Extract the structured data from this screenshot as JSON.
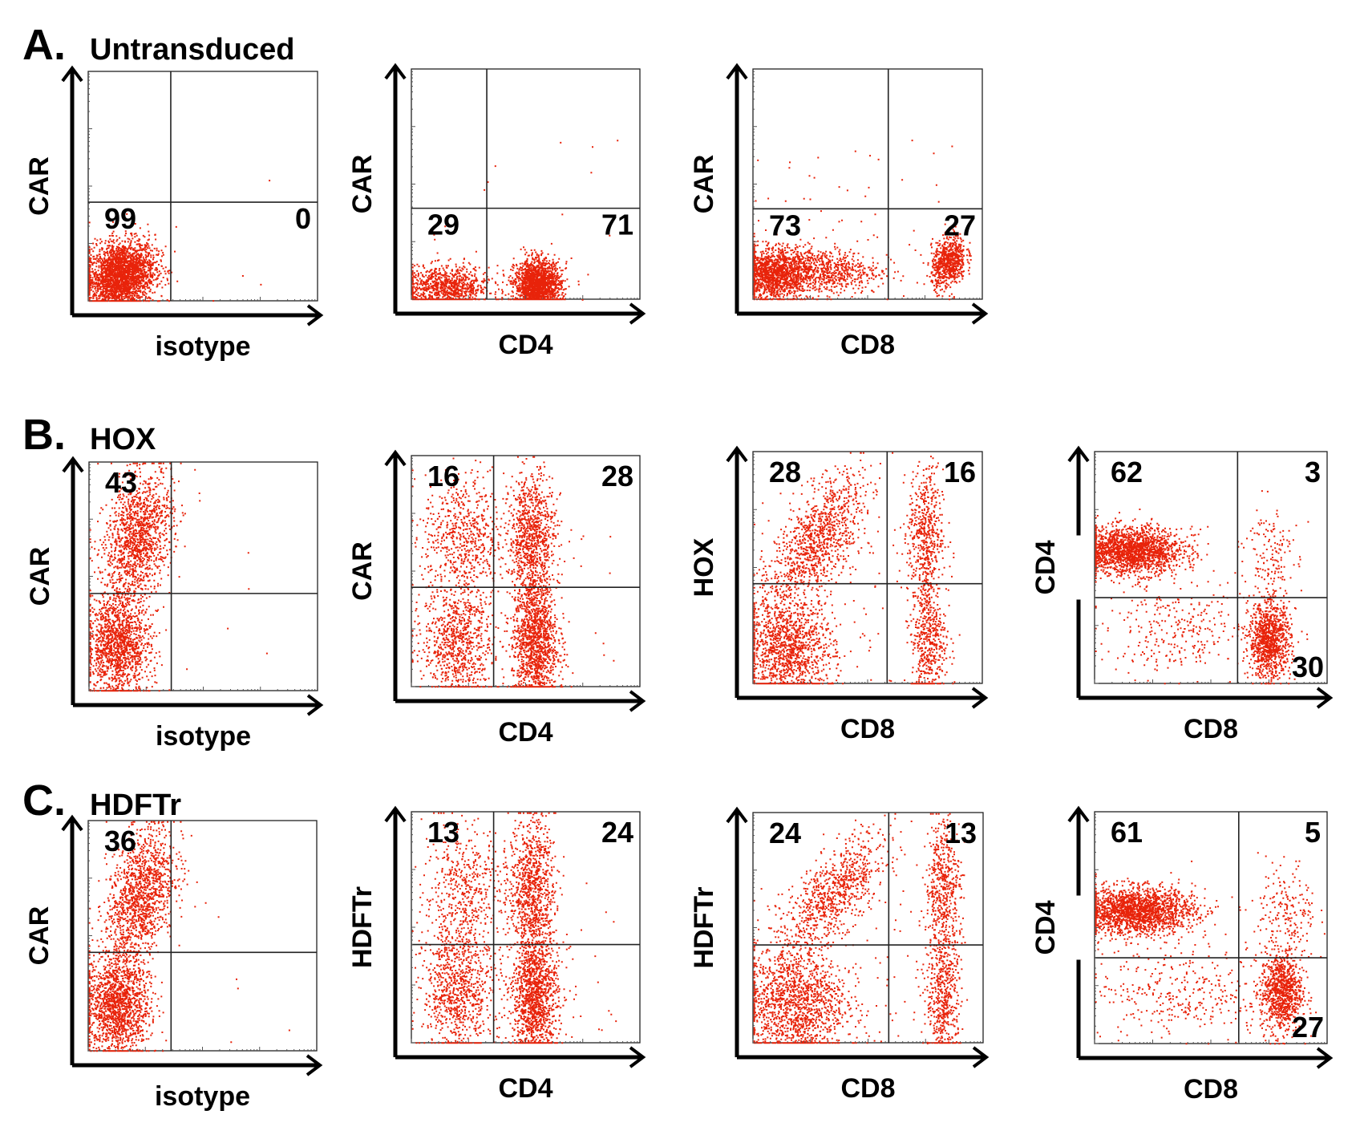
{
  "figure": {
    "sections": [
      {
        "letter": "A.",
        "title": "Untransduced"
      },
      {
        "letter": "B.",
        "title": "HOX"
      },
      {
        "letter": "C.",
        "title": "HDFTr"
      }
    ]
  },
  "chart_data": [
    {
      "type": "scatter",
      "panel": "A1",
      "section": "A",
      "xlabel": "isotype",
      "ylabel": "CAR",
      "xlim": [
        0,
        4
      ],
      "ylim": [
        0,
        4
      ],
      "gate": [
        1.44,
        1.72
      ],
      "quadrants": {
        "UL": null,
        "UR": null,
        "LL": "99",
        "LR": "0"
      },
      "clusters": [
        {
          "cx": 0.55,
          "cy": 0.45,
          "sx": 0.3,
          "sy": 0.3,
          "n": 2600,
          "corr": 0.2
        }
      ],
      "sparse": 10
    },
    {
      "type": "scatter",
      "panel": "A2",
      "section": "A",
      "xlabel": "CD4",
      "ylabel": "CAR",
      "xlim": [
        0,
        4
      ],
      "ylim": [
        0,
        4
      ],
      "gate": [
        1.32,
        1.58
      ],
      "quadrants": {
        "UL": null,
        "UR": null,
        "LL": "29",
        "LR": "71"
      },
      "clusters": [
        {
          "cx": 0.6,
          "cy": 0.22,
          "sx": 0.38,
          "sy": 0.18,
          "n": 900,
          "corr": 0
        },
        {
          "cx": 2.2,
          "cy": 0.25,
          "sx": 0.2,
          "sy": 0.22,
          "n": 1800,
          "corr": 0
        }
      ],
      "sparse": 20
    },
    {
      "type": "scatter",
      "panel": "A3",
      "section": "A",
      "xlabel": "CD8",
      "ylabel": "CAR",
      "xlim": [
        0,
        4
      ],
      "ylim": [
        0,
        4
      ],
      "gate": [
        2.36,
        1.57
      ],
      "quadrants": {
        "UL": null,
        "UR": null,
        "LL": "73",
        "LR": "27"
      },
      "clusters": [
        {
          "cx": 0.3,
          "cy": 0.45,
          "sx": 0.35,
          "sy": 0.22,
          "n": 1500,
          "corr": 0
        },
        {
          "cx": 1.2,
          "cy": 0.5,
          "sx": 0.5,
          "sy": 0.2,
          "n": 700,
          "corr": 0
        },
        {
          "cx": 3.4,
          "cy": 0.65,
          "sx": 0.15,
          "sy": 0.22,
          "n": 700,
          "corr": 0.3
        }
      ],
      "sparse": 60
    },
    {
      "type": "scatter",
      "panel": "B1",
      "section": "B",
      "xlabel": "isotype",
      "ylabel": "CAR",
      "xlim": [
        0,
        4
      ],
      "ylim": [
        0,
        4
      ],
      "gate": [
        1.44,
        1.7
      ],
      "quadrants": {
        "UL": "43",
        "UR": null,
        "LL": null,
        "LR": null
      },
      "clusters": [
        {
          "cx": 0.5,
          "cy": 0.8,
          "sx": 0.28,
          "sy": 0.45,
          "n": 1400,
          "corr": 0
        },
        {
          "cx": 0.85,
          "cy": 2.7,
          "sx": 0.3,
          "sy": 0.55,
          "n": 1300,
          "corr": 0.3
        }
      ],
      "sparse": 10
    },
    {
      "type": "scatter",
      "panel": "B2",
      "section": "B",
      "xlabel": "CD4",
      "ylabel": "CAR",
      "xlim": [
        0,
        4
      ],
      "ylim": [
        0,
        4
      ],
      "gate": [
        1.44,
        1.72
      ],
      "quadrants": {
        "UL": "16",
        "UR": "28",
        "LL": null,
        "LR": null
      },
      "clusters": [
        {
          "cx": 0.8,
          "cy": 0.8,
          "sx": 0.3,
          "sy": 0.5,
          "n": 800,
          "corr": 0
        },
        {
          "cx": 0.9,
          "cy": 2.6,
          "sx": 0.35,
          "sy": 0.55,
          "n": 600,
          "corr": 0
        },
        {
          "cx": 2.15,
          "cy": 0.8,
          "sx": 0.2,
          "sy": 0.55,
          "n": 1300,
          "corr": 0
        },
        {
          "cx": 2.1,
          "cy": 2.6,
          "sx": 0.2,
          "sy": 0.55,
          "n": 900,
          "corr": 0
        }
      ],
      "sparse": 60
    },
    {
      "type": "scatter",
      "panel": "B3",
      "section": "B",
      "xlabel": "CD8",
      "ylabel": "HOX",
      "xlim": [
        0,
        4
      ],
      "ylim": [
        0,
        4
      ],
      "gate": [
        2.34,
        1.72
      ],
      "quadrants": {
        "UL": "28",
        "UR": "16",
        "LL": null,
        "LR": null
      },
      "clusters": [
        {
          "cx": 0.6,
          "cy": 0.6,
          "sx": 0.4,
          "sy": 0.45,
          "n": 1300,
          "corr": 0
        },
        {
          "cx": 1.1,
          "cy": 2.5,
          "sx": 0.4,
          "sy": 0.55,
          "n": 1000,
          "corr": 0.6
        },
        {
          "cx": 3.0,
          "cy": 2.6,
          "sx": 0.15,
          "sy": 0.55,
          "n": 500,
          "corr": 0
        },
        {
          "cx": 3.05,
          "cy": 0.8,
          "sx": 0.15,
          "sy": 0.55,
          "n": 500,
          "corr": 0
        }
      ],
      "sparse": 120
    },
    {
      "type": "scatter",
      "panel": "B4",
      "section": "B",
      "xlabel": "CD8",
      "ylabel": "CD4",
      "xlim": [
        0,
        4
      ],
      "ylim": [
        0,
        4
      ],
      "gate": [
        2.46,
        1.48
      ],
      "quadrants": {
        "UL": "62",
        "UR": "3",
        "LL": null,
        "LR": "30"
      },
      "clusters": [
        {
          "cx": 0.6,
          "cy": 2.3,
          "sx": 0.45,
          "sy": 0.2,
          "n": 1900,
          "corr": 0
        },
        {
          "cx": 3.0,
          "cy": 0.75,
          "sx": 0.18,
          "sy": 0.32,
          "n": 1000,
          "corr": 0
        },
        {
          "cx": 1.4,
          "cy": 0.9,
          "sx": 0.6,
          "sy": 0.35,
          "n": 250,
          "corr": 0
        },
        {
          "cx": 3.0,
          "cy": 2.2,
          "sx": 0.2,
          "sy": 0.5,
          "n": 150,
          "corr": 0
        }
      ],
      "sparse": 60
    },
    {
      "type": "scatter",
      "panel": "C1",
      "section": "C",
      "xlabel": "isotype",
      "ylabel": "CAR",
      "xlim": [
        0,
        4
      ],
      "ylim": [
        0,
        4
      ],
      "gate": [
        1.45,
        1.71
      ],
      "quadrants": {
        "UL": "36",
        "UR": null,
        "LL": null,
        "LR": null
      },
      "clusters": [
        {
          "cx": 0.5,
          "cy": 0.8,
          "sx": 0.28,
          "sy": 0.45,
          "n": 1500,
          "corr": 0
        },
        {
          "cx": 0.9,
          "cy": 2.7,
          "sx": 0.3,
          "sy": 0.6,
          "n": 1300,
          "corr": 0.4
        }
      ],
      "sparse": 10
    },
    {
      "type": "scatter",
      "panel": "C2",
      "section": "C",
      "xlabel": "CD4",
      "ylabel": "HDFTr",
      "xlim": [
        0,
        4
      ],
      "ylim": [
        0,
        4
      ],
      "gate": [
        1.44,
        1.7
      ],
      "quadrants": {
        "UL": "13",
        "UR": "24",
        "LL": null,
        "LR": null
      },
      "clusters": [
        {
          "cx": 0.8,
          "cy": 0.9,
          "sx": 0.3,
          "sy": 0.55,
          "n": 800,
          "corr": 0
        },
        {
          "cx": 0.9,
          "cy": 2.6,
          "sx": 0.35,
          "sy": 0.6,
          "n": 500,
          "corr": 0
        },
        {
          "cx": 2.15,
          "cy": 0.8,
          "sx": 0.2,
          "sy": 0.55,
          "n": 1300,
          "corr": 0
        },
        {
          "cx": 2.1,
          "cy": 2.7,
          "sx": 0.2,
          "sy": 0.6,
          "n": 900,
          "corr": 0
        }
      ],
      "sparse": 80
    },
    {
      "type": "scatter",
      "panel": "C3",
      "section": "C",
      "xlabel": "CD8",
      "ylabel": "HDFTr",
      "xlim": [
        0,
        4
      ],
      "ylim": [
        0,
        4
      ],
      "gate": [
        2.36,
        1.7
      ],
      "quadrants": {
        "UL": "24",
        "UR": "13",
        "LL": null,
        "LR": null
      },
      "clusters": [
        {
          "cx": 0.7,
          "cy": 0.7,
          "sx": 0.45,
          "sy": 0.5,
          "n": 1400,
          "corr": 0
        },
        {
          "cx": 1.4,
          "cy": 2.6,
          "sx": 0.45,
          "sy": 0.5,
          "n": 800,
          "corr": 0.7
        },
        {
          "cx": 3.3,
          "cy": 2.7,
          "sx": 0.15,
          "sy": 0.6,
          "n": 500,
          "corr": 0
        },
        {
          "cx": 3.3,
          "cy": 0.8,
          "sx": 0.15,
          "sy": 0.55,
          "n": 500,
          "corr": 0
        }
      ],
      "sparse": 150
    },
    {
      "type": "scatter",
      "panel": "C4",
      "section": "C",
      "xlabel": "CD8",
      "ylabel": "CD4",
      "xlim": [
        0,
        4
      ],
      "ylim": [
        0,
        4
      ],
      "gate": [
        2.48,
        1.48
      ],
      "quadrants": {
        "UL": "61",
        "UR": "5",
        "LL": null,
        "LR": "27"
      },
      "clusters": [
        {
          "cx": 0.7,
          "cy": 2.3,
          "sx": 0.5,
          "sy": 0.2,
          "n": 1900,
          "corr": 0
        },
        {
          "cx": 3.2,
          "cy": 0.9,
          "sx": 0.18,
          "sy": 0.35,
          "n": 900,
          "corr": 0
        },
        {
          "cx": 1.5,
          "cy": 0.9,
          "sx": 0.7,
          "sy": 0.35,
          "n": 300,
          "corr": 0
        },
        {
          "cx": 3.3,
          "cy": 2.2,
          "sx": 0.25,
          "sy": 0.5,
          "n": 200,
          "corr": 0
        }
      ],
      "sparse": 60
    }
  ],
  "colors": {
    "dots": "#e8230a",
    "axis": "#000000",
    "frame": "#222222"
  }
}
